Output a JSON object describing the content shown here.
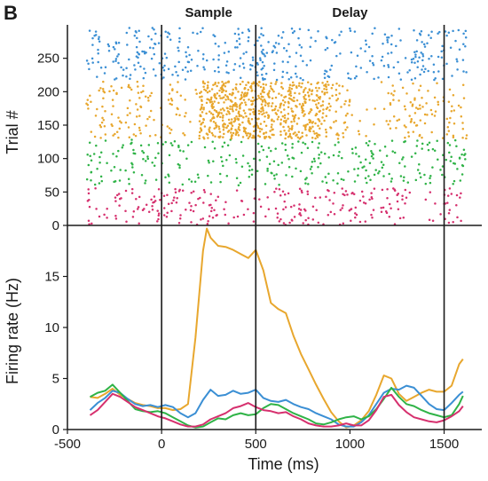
{
  "panel_letter": "B",
  "colors": {
    "blue": "#3b8fd4",
    "orange": "#e8a72e",
    "green": "#2fb347",
    "magenta": "#d6306e",
    "axis": "#1a1a1a"
  },
  "chart_data": [
    {
      "type": "scatter",
      "ylabel": "Trial #",
      "xlim": [
        -500,
        1700
      ],
      "ylim": [
        0,
        300
      ],
      "yticks": [
        0,
        50,
        100,
        150,
        200,
        250
      ],
      "epoch_lines": [
        0,
        500,
        1500
      ],
      "epoch_labels": [
        {
          "text": "Sample",
          "x": 250
        },
        {
          "text": "Delay",
          "x": 1000
        }
      ],
      "groups": [
        {
          "color": "magenta",
          "trial_range": [
            1,
            55
          ],
          "density": [
            0.8,
            0.5,
            0.35,
            0.5,
            0.4,
            0.6,
            0.35,
            0.55,
            0.2,
            0.2,
            0.35,
            0.6,
            0.45,
            0.4,
            0.55,
            0.6,
            0.45,
            0.55,
            0.2,
            0.35,
            0.7,
            0.45
          ]
        },
        {
          "color": "green",
          "trial_range": [
            60,
            128
          ],
          "density": [
            0.85,
            0.5,
            0.35,
            0.45,
            0.4,
            0.5,
            0.25,
            0.3,
            0.3,
            0.35,
            0.55,
            0.5,
            0.35,
            0.35,
            0.35,
            0.5,
            0.45,
            0.4,
            0.3,
            0.35,
            0.55,
            0.55
          ]
        },
        {
          "color": "orange",
          "trial_range": [
            130,
            215
          ],
          "density": [
            0.8,
            0.45,
            0.3,
            0.5,
            0.4,
            0.4,
            0.2,
            2.2,
            2.4,
            2.2,
            2.0,
            1.7,
            1.8,
            1.5,
            0.6,
            0.1,
            0.1,
            0.45,
            0.6,
            0.45,
            0.5,
            0.8
          ]
        },
        {
          "color": "blue",
          "trial_range": [
            218,
            295
          ],
          "density": [
            0.85,
            0.5,
            0.4,
            0.55,
            0.5,
            0.45,
            0.3,
            0.2,
            0.5,
            0.55,
            0.7,
            0.6,
            0.4,
            0.3,
            0.3,
            0.35,
            0.3,
            0.6,
            0.55,
            0.45,
            0.35,
            0.75
          ]
        }
      ]
    },
    {
      "type": "line",
      "xlabel": "Time (ms)",
      "ylabel": "Firing rate (Hz)",
      "xlim": [
        -500,
        1700
      ],
      "ylim": [
        0,
        20
      ],
      "xticks": [
        -500,
        0,
        500,
        1000,
        1500
      ],
      "yticks": [
        0,
        5,
        10,
        15
      ],
      "epoch_lines": [
        0,
        500,
        1500
      ],
      "series": [
        {
          "color": "orange",
          "x": [
            -380,
            -340,
            -300,
            -260,
            -220,
            -180,
            -140,
            -100,
            -60,
            -20,
            20,
            60,
            100,
            140,
            180,
            220,
            240,
            260,
            300,
            340,
            380,
            420,
            460,
            500,
            540,
            580,
            620,
            660,
            700,
            740,
            780,
            820,
            860,
            900,
            940,
            980,
            1020,
            1060,
            1100,
            1140,
            1180,
            1220,
            1260,
            1300,
            1340,
            1380,
            1420,
            1460,
            1500,
            1540,
            1580,
            1600
          ],
          "y": [
            3.2,
            3.1,
            3.5,
            4.0,
            3.4,
            3.0,
            2.6,
            2.4,
            2.3,
            2.1,
            2.1,
            1.9,
            2.0,
            2.5,
            9.0,
            17.5,
            19.7,
            18.8,
            18.0,
            17.9,
            17.6,
            17.2,
            16.8,
            17.6,
            15.6,
            12.4,
            11.8,
            11.4,
            9.2,
            7.4,
            5.9,
            4.4,
            3.0,
            1.7,
            0.8,
            0.2,
            0.4,
            0.9,
            1.8,
            3.4,
            5.3,
            5.0,
            3.5,
            2.8,
            3.2,
            3.6,
            3.9,
            3.7,
            3.7,
            4.3,
            6.4,
            6.9
          ]
        },
        {
          "color": "blue",
          "x": [
            -380,
            -340,
            -300,
            -260,
            -220,
            -180,
            -140,
            -100,
            -60,
            -20,
            20,
            60,
            100,
            140,
            180,
            220,
            260,
            300,
            340,
            380,
            420,
            460,
            500,
            540,
            580,
            620,
            660,
            700,
            740,
            780,
            820,
            860,
            900,
            940,
            980,
            1020,
            1060,
            1100,
            1140,
            1180,
            1220,
            1260,
            1300,
            1340,
            1380,
            1420,
            1460,
            1500,
            1540,
            1580,
            1600
          ],
          "y": [
            1.9,
            2.6,
            3.1,
            3.8,
            3.6,
            3.0,
            2.5,
            2.3,
            2.4,
            2.2,
            2.4,
            2.2,
            1.6,
            1.2,
            1.6,
            2.9,
            3.9,
            3.3,
            3.4,
            3.8,
            3.5,
            3.6,
            3.9,
            3.1,
            2.8,
            2.7,
            2.9,
            2.5,
            2.2,
            2.0,
            1.6,
            1.3,
            1.0,
            0.5,
            0.3,
            0.3,
            0.7,
            1.4,
            2.5,
            3.6,
            4.0,
            3.9,
            4.3,
            4.1,
            3.3,
            2.5,
            2.0,
            1.9,
            2.6,
            3.4,
            3.7
          ]
        },
        {
          "color": "green",
          "x": [
            -380,
            -340,
            -300,
            -260,
            -220,
            -180,
            -140,
            -100,
            -60,
            -20,
            20,
            60,
            100,
            140,
            180,
            220,
            260,
            300,
            340,
            380,
            420,
            460,
            500,
            540,
            580,
            620,
            660,
            700,
            740,
            780,
            820,
            860,
            900,
            940,
            980,
            1020,
            1060,
            1100,
            1140,
            1180,
            1220,
            1260,
            1300,
            1340,
            1380,
            1420,
            1460,
            1500,
            1540,
            1580,
            1600
          ],
          "y": [
            3.2,
            3.6,
            3.8,
            4.4,
            3.6,
            2.8,
            2.0,
            1.8,
            1.7,
            1.8,
            1.6,
            1.2,
            0.8,
            0.4,
            0.2,
            0.3,
            0.7,
            1.1,
            1.0,
            1.4,
            1.6,
            1.4,
            1.5,
            2.1,
            2.5,
            2.4,
            2.0,
            1.6,
            1.3,
            1.0,
            0.6,
            0.5,
            0.7,
            1.0,
            1.2,
            1.3,
            1.0,
            1.3,
            2.0,
            3.0,
            4.1,
            3.2,
            2.5,
            2.3,
            1.9,
            1.6,
            1.4,
            1.2,
            1.4,
            2.5,
            3.3
          ]
        },
        {
          "color": "magenta",
          "x": [
            -380,
            -340,
            -300,
            -260,
            -220,
            -180,
            -140,
            -100,
            -60,
            -20,
            20,
            60,
            100,
            140,
            180,
            220,
            260,
            300,
            340,
            380,
            420,
            460,
            500,
            540,
            580,
            620,
            660,
            700,
            740,
            780,
            820,
            860,
            900,
            940,
            980,
            1020,
            1060,
            1100,
            1140,
            1180,
            1220,
            1260,
            1300,
            1340,
            1380,
            1420,
            1460,
            1500,
            1540,
            1580,
            1600
          ],
          "y": [
            1.4,
            1.9,
            2.7,
            3.5,
            3.2,
            2.7,
            2.2,
            1.9,
            1.6,
            1.3,
            1.1,
            0.8,
            0.5,
            0.3,
            0.3,
            0.5,
            1.0,
            1.3,
            1.6,
            2.1,
            2.3,
            2.6,
            2.2,
            1.9,
            1.8,
            1.6,
            1.7,
            1.3,
            1.0,
            0.6,
            0.4,
            0.3,
            0.3,
            0.4,
            0.6,
            0.4,
            0.4,
            0.9,
            1.9,
            3.2,
            3.4,
            2.4,
            1.7,
            1.2,
            1.0,
            0.8,
            0.7,
            0.9,
            1.3,
            1.8,
            2.3
          ]
        }
      ]
    }
  ]
}
